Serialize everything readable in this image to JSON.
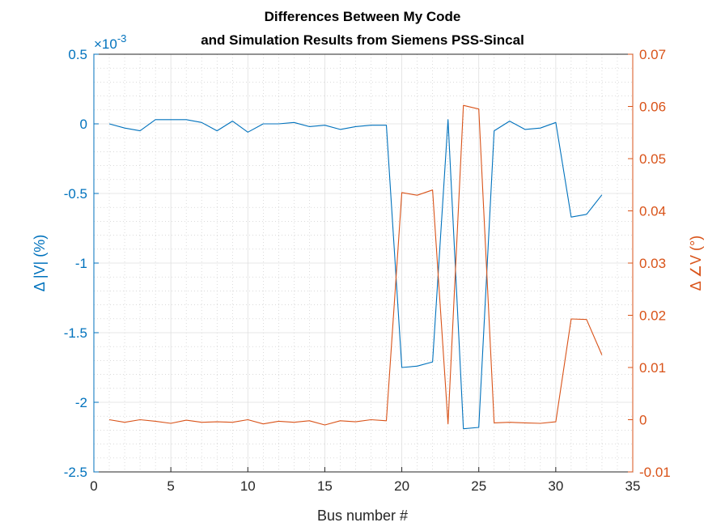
{
  "chart_data": {
    "type": "line",
    "title": [
      "Differences Between My Code",
      "and Simulation Results from Siemens PSS-Sincal"
    ],
    "xlabel": "Bus number #",
    "ylabel_left": "Δ |V| (%)",
    "ylabel_right": "Δ ∠V (°)",
    "left_exponent": "×10^-3",
    "xlim": [
      0,
      35
    ],
    "ylim_left": [
      -2.5,
      0.5
    ],
    "ylim_right": [
      -0.01,
      0.07
    ],
    "x_ticks": [
      "0",
      "5",
      "10",
      "15",
      "20",
      "25",
      "30",
      "35"
    ],
    "y_left_ticks": [
      "0.5",
      "0",
      "-0.5",
      "-1",
      "-1.5",
      "-2",
      "-2.5"
    ],
    "y_right_ticks": [
      "0.07",
      "0.06",
      "0.05",
      "0.04",
      "0.03",
      "0.02",
      "0.01",
      "0",
      "-0.01"
    ],
    "grid": true,
    "colors": {
      "left_series": "#0072BD",
      "right_series": "#D95319"
    },
    "x": [
      1,
      2,
      3,
      4,
      5,
      6,
      7,
      8,
      9,
      10,
      11,
      12,
      13,
      14,
      15,
      16,
      17,
      18,
      19,
      20,
      21,
      22,
      23,
      24,
      25,
      26,
      27,
      28,
      29,
      30,
      31,
      32,
      33
    ],
    "series": [
      {
        "axis": "left",
        "values_e3": [
          0,
          -0.03,
          -0.05,
          0.03,
          0.03,
          0.03,
          0.01,
          -0.05,
          0.02,
          -0.06,
          0,
          0,
          0.01,
          -0.02,
          -0.01,
          -0.04,
          -0.02,
          -0.01,
          -0.01,
          -1.75,
          -1.74,
          -1.71,
          0.03,
          -2.19,
          -2.18,
          -0.05,
          0.02,
          -0.04,
          -0.03,
          0.01,
          -0.67,
          -0.65,
          -0.51
        ]
      },
      {
        "axis": "right",
        "values": [
          0,
          -0.0005,
          0,
          -0.0003,
          -0.0007,
          -0.0001,
          -0.0005,
          -0.0004,
          -0.0005,
          0,
          -0.0008,
          -0.0003,
          -0.0005,
          -0.0002,
          -0.001,
          -0.0002,
          -0.0004,
          0,
          -0.0002,
          0.0435,
          0.043,
          0.044,
          -0.0008,
          0.0602,
          0.0595,
          -0.0006,
          -0.0005,
          -0.0006,
          -0.0007,
          -0.0004,
          0.0193,
          0.0192,
          0.0124
        ]
      }
    ]
  }
}
